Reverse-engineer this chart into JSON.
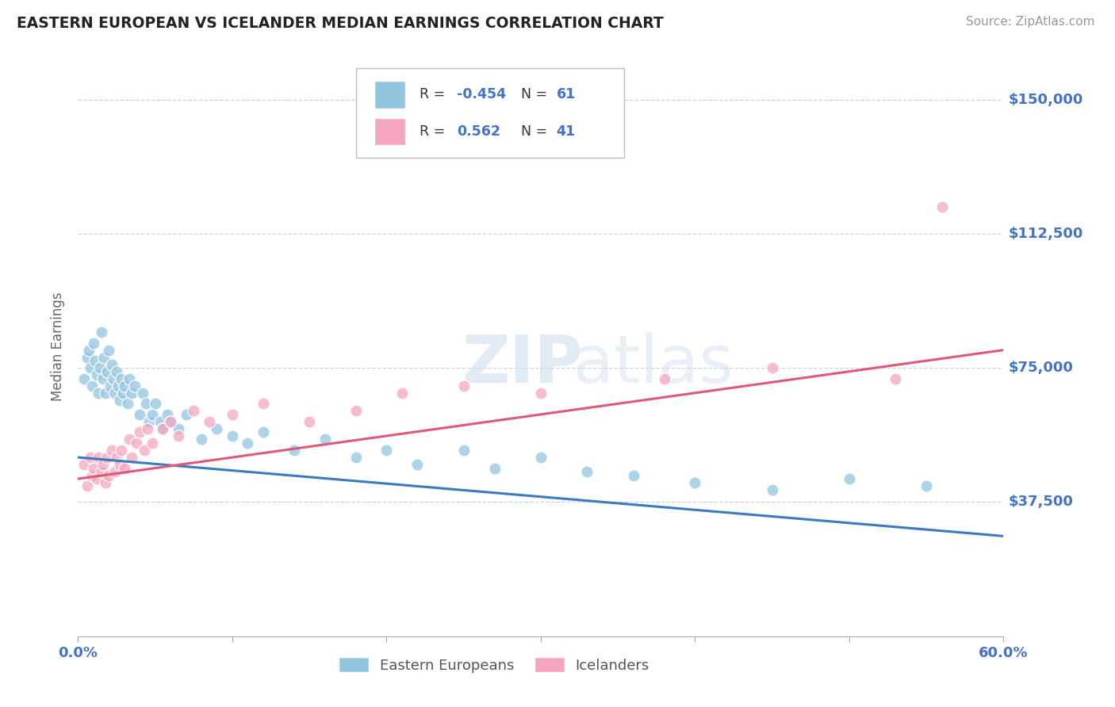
{
  "title": "EASTERN EUROPEAN VS ICELANDER MEDIAN EARNINGS CORRELATION CHART",
  "source": "Source: ZipAtlas.com",
  "ylabel": "Median Earnings",
  "xlim_min": 0.0,
  "xlim_max": 0.6,
  "ylim_min": 0,
  "ylim_max": 162000,
  "xtick_positions": [
    0.0,
    0.1,
    0.2,
    0.3,
    0.4,
    0.5,
    0.6
  ],
  "xticklabels": [
    "0.0%",
    "",
    "",
    "",
    "",
    "",
    "60.0%"
  ],
  "ytick_values": [
    0,
    37500,
    75000,
    112500,
    150000
  ],
  "ytick_labels": [
    "",
    "$37,500",
    "$75,000",
    "$112,500",
    "$150,000"
  ],
  "blue_R": -0.454,
  "blue_N": 61,
  "pink_R": 0.562,
  "pink_N": 41,
  "blue_scatter_color": "#92c5de",
  "pink_scatter_color": "#f4a6c0",
  "blue_line_color": "#3a7abf",
  "pink_line_color": "#e05878",
  "axis_color": "#4472c4",
  "title_color": "#222222",
  "source_color": "#999999",
  "grid_color": "#c8d4e8",
  "blue_x": [
    0.004,
    0.006,
    0.007,
    0.008,
    0.009,
    0.01,
    0.011,
    0.012,
    0.013,
    0.014,
    0.015,
    0.016,
    0.017,
    0.018,
    0.019,
    0.02,
    0.021,
    0.022,
    0.023,
    0.024,
    0.025,
    0.026,
    0.027,
    0.028,
    0.029,
    0.03,
    0.032,
    0.033,
    0.035,
    0.037,
    0.04,
    0.042,
    0.044,
    0.046,
    0.048,
    0.05,
    0.053,
    0.055,
    0.058,
    0.06,
    0.065,
    0.07,
    0.08,
    0.09,
    0.1,
    0.11,
    0.12,
    0.14,
    0.16,
    0.18,
    0.2,
    0.22,
    0.25,
    0.27,
    0.3,
    0.33,
    0.36,
    0.4,
    0.45,
    0.5,
    0.55
  ],
  "blue_y": [
    72000,
    78000,
    80000,
    75000,
    70000,
    82000,
    77000,
    73000,
    68000,
    75000,
    85000,
    72000,
    78000,
    68000,
    74000,
    80000,
    70000,
    76000,
    72000,
    68000,
    74000,
    70000,
    66000,
    72000,
    68000,
    70000,
    65000,
    72000,
    68000,
    70000,
    62000,
    68000,
    65000,
    60000,
    62000,
    65000,
    60000,
    58000,
    62000,
    60000,
    58000,
    62000,
    55000,
    58000,
    56000,
    54000,
    57000,
    52000,
    55000,
    50000,
    52000,
    48000,
    52000,
    47000,
    50000,
    46000,
    45000,
    43000,
    41000,
    44000,
    42000
  ],
  "pink_x": [
    0.004,
    0.006,
    0.008,
    0.009,
    0.01,
    0.012,
    0.013,
    0.015,
    0.016,
    0.018,
    0.019,
    0.02,
    0.022,
    0.024,
    0.025,
    0.027,
    0.028,
    0.03,
    0.033,
    0.035,
    0.038,
    0.04,
    0.043,
    0.045,
    0.048,
    0.055,
    0.06,
    0.065,
    0.075,
    0.085,
    0.1,
    0.12,
    0.15,
    0.18,
    0.21,
    0.25,
    0.3,
    0.38,
    0.45,
    0.53,
    0.56
  ],
  "pink_y": [
    48000,
    42000,
    50000,
    45000,
    47000,
    44000,
    50000,
    46000,
    48000,
    43000,
    50000,
    45000,
    52000,
    46000,
    50000,
    48000,
    52000,
    47000,
    55000,
    50000,
    54000,
    57000,
    52000,
    58000,
    54000,
    58000,
    60000,
    56000,
    63000,
    60000,
    62000,
    65000,
    60000,
    63000,
    68000,
    70000,
    68000,
    72000,
    75000,
    72000,
    120000
  ]
}
